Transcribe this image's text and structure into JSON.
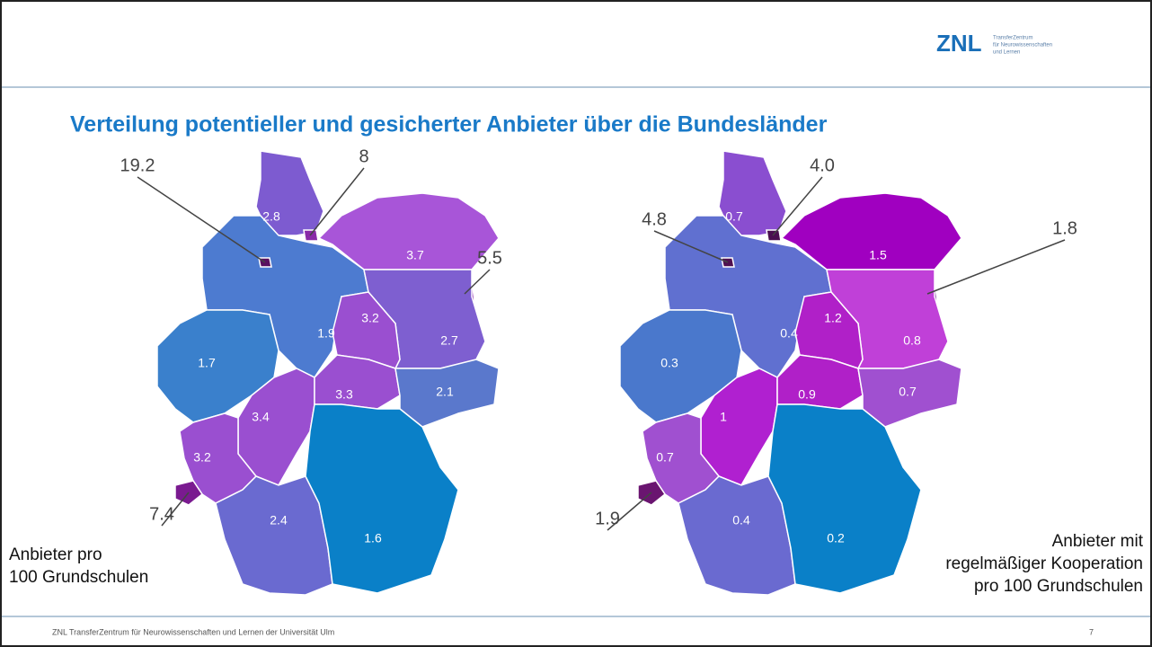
{
  "header": {
    "logo": "ZNL",
    "logo_lines": [
      "TransferZentrum",
      "für Neurowissenschaften",
      "und Lernen"
    ]
  },
  "title": "Verteilung potentieller und gesicherter Anbieter über die Bundesländer",
  "maps": [
    {
      "regions": [
        {
          "label": "2.8",
          "color": "#7d5bd0"
        },
        {
          "label": "8",
          "color": "#8a2aa8"
        },
        {
          "label": "3.7",
          "color": "#a855d8"
        },
        {
          "label": "1.9",
          "color": "#4d7bd0"
        },
        {
          "label": "19.2",
          "color": "#5a1060"
        },
        {
          "label": "5.5",
          "color": "#8a2aa8"
        },
        {
          "label": "2.7",
          "color": "#7e5fd0"
        },
        {
          "label": "3.2",
          "color": "#9a4fd0"
        },
        {
          "label": "1.7",
          "color": "#3a80cc"
        },
        {
          "label": "3.4",
          "color": "#9a4fd0"
        },
        {
          "label": "3.3",
          "color": "#9a4fd0"
        },
        {
          "label": "2.1",
          "color": "#5a78cc"
        },
        {
          "label": "3.2",
          "color": "#9a4fd0"
        },
        {
          "label": "7.4",
          "color": "#7a1a90"
        },
        {
          "label": "2.4",
          "color": "#6a6ad0"
        },
        {
          "label": "1.6",
          "color": "#0a80c8"
        }
      ],
      "caption": [
        "Anbieter pro",
        "100 Grundschulen"
      ]
    },
    {
      "regions": [
        {
          "label": "0.7",
          "color": "#8a4ed0"
        },
        {
          "label": "4.0",
          "color": "#4a1050"
        },
        {
          "label": "1.5",
          "color": "#a000c0"
        },
        {
          "label": "0.4",
          "color": "#6070d0"
        },
        {
          "label": "4.8",
          "color": "#501050"
        },
        {
          "label": "1.8",
          "color": "#7a2a9a"
        },
        {
          "label": "0.8",
          "color": "#c040d8"
        },
        {
          "label": "1.2",
          "color": "#b020c8"
        },
        {
          "label": "0.3",
          "color": "#4a78cc"
        },
        {
          "label": "1",
          "color": "#b020d0"
        },
        {
          "label": "0.9",
          "color": "#b020c8"
        },
        {
          "label": "0.7",
          "color": "#a050d0"
        },
        {
          "label": "0.7",
          "color": "#a050d0"
        },
        {
          "label": "1.9",
          "color": "#6a1570"
        },
        {
          "label": "0.4",
          "color": "#6a6ad0"
        },
        {
          "label": "0.2",
          "color": "#0a80c8"
        }
      ],
      "caption": [
        "Anbieter mit",
        "regelmäßiger Kooperation",
        "pro 100 Grundschulen"
      ]
    }
  ],
  "footer": {
    "text": "ZNL TransferZentrum für Neurowissenschaften und Lernen der Universität Ulm",
    "page": "7"
  }
}
